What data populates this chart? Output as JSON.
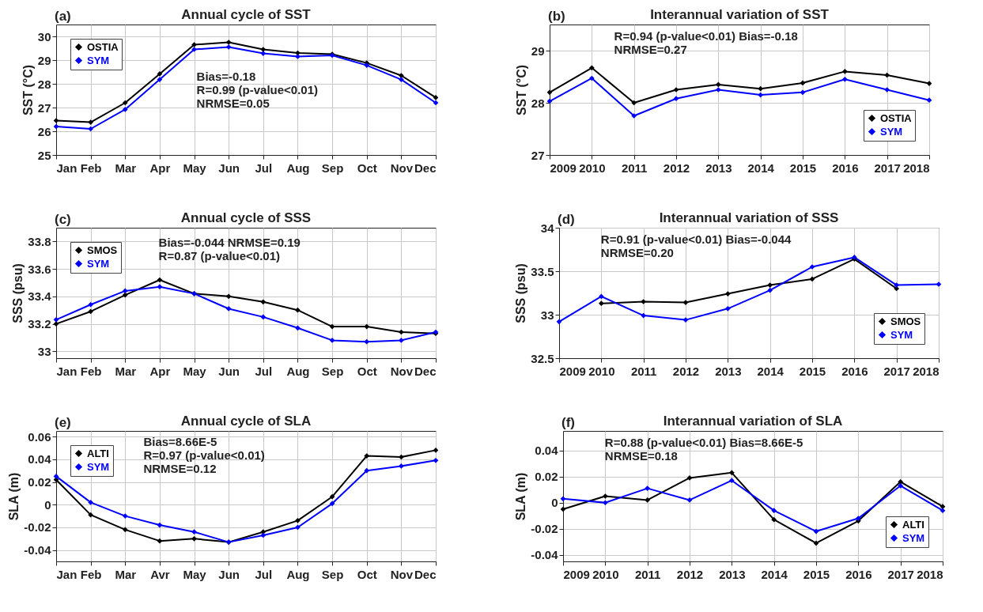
{
  "chart_data": [
    {
      "type": "line",
      "title": "Annual cycle of SST",
      "ylabel": "SST (°C)",
      "categories": [
        "Jan",
        "Feb",
        "Mar",
        "Apr",
        "May",
        "Jun",
        "Jul",
        "Aug",
        "Sep",
        "Oct",
        "Nov",
        "Dec"
      ],
      "ylim": [
        25,
        30.5
      ],
      "yticks": [
        25,
        26,
        27,
        28,
        29,
        30
      ],
      "grid": true,
      "legend": "top left",
      "marker": "diamond",
      "annotations": [
        "(a)",
        "Bias=-0.18",
        "R=0.99 (p-value<0.01)",
        "NRMSE=0.05"
      ],
      "series": [
        {
          "name": "OSTIA",
          "color": "#000000",
          "values": [
            26.45,
            26.38,
            27.2,
            28.42,
            29.65,
            29.75,
            29.45,
            29.3,
            29.25,
            28.88,
            28.35,
            27.42
          ]
        },
        {
          "name": "SYM",
          "color": "#0000ff",
          "values": [
            26.2,
            26.1,
            26.92,
            28.18,
            29.45,
            29.55,
            29.28,
            29.15,
            29.2,
            28.78,
            28.18,
            27.2
          ]
        }
      ]
    },
    {
      "type": "line",
      "title": "Interannual variation of SST",
      "ylabel": "SST (°C)",
      "categories": [
        "2009",
        "2010",
        "2011",
        "2012",
        "2013",
        "2014",
        "2015",
        "2016",
        "2017",
        "2018"
      ],
      "ylim": [
        27,
        29.5
      ],
      "yticks": [
        27,
        28,
        29
      ],
      "grid": true,
      "legend": "bottom right",
      "marker": "diamond",
      "annotations": [
        "(b)",
        "R=0.94 (p-value<0.01)      Bias=-0.18",
        "NRMSE=0.27"
      ],
      "series": [
        {
          "name": "OSTIA",
          "color": "#000000",
          "values": [
            28.2,
            28.67,
            28.0,
            28.25,
            28.35,
            28.27,
            28.38,
            28.6,
            28.53,
            28.37
          ]
        },
        {
          "name": "SYM",
          "color": "#0000ff",
          "values": [
            28.03,
            28.47,
            27.75,
            28.08,
            28.25,
            28.15,
            28.2,
            28.45,
            28.25,
            28.05
          ]
        }
      ]
    },
    {
      "type": "line",
      "title": "Annual cycle of SSS",
      "ylabel": "SSS (psu)",
      "categories": [
        "Jan",
        "Feb",
        "Mar",
        "Apr",
        "May",
        "Jun",
        "Jul",
        "Aug",
        "Sep",
        "Oct",
        "Nov",
        "Dec"
      ],
      "ylim": [
        32.95,
        33.9
      ],
      "yticks": [
        33,
        33.2,
        33.4,
        33.6,
        33.8
      ],
      "grid": true,
      "legend": "top left",
      "marker": "diamond",
      "annotations": [
        "(c)",
        "Bias=-0.044      NRMSE=0.19",
        "R=0.87 (p-value<0.01)"
      ],
      "series": [
        {
          "name": "SMOS",
          "color": "#000000",
          "values": [
            33.2,
            33.29,
            33.41,
            33.52,
            33.42,
            33.4,
            33.36,
            33.3,
            33.18,
            33.18,
            33.14,
            33.13
          ]
        },
        {
          "name": "SYM",
          "color": "#0000ff",
          "values": [
            33.23,
            33.34,
            33.44,
            33.47,
            33.42,
            33.31,
            33.25,
            33.17,
            33.08,
            33.07,
            33.08,
            33.14
          ]
        }
      ]
    },
    {
      "type": "line",
      "title": "Interannual variation of SSS",
      "ylabel": "SSS (psu)",
      "categories": [
        "2009",
        "2010",
        "2011",
        "2012",
        "2013",
        "2014",
        "2015",
        "2016",
        "2017",
        "2018"
      ],
      "ylim": [
        32.5,
        34
      ],
      "yticks": [
        32.5,
        33,
        33.5,
        34
      ],
      "grid": true,
      "legend": "bottom right",
      "marker": "diamond",
      "annotations": [
        "(d)",
        "R=0.91 (p-value<0.01)      Bias=-0.044",
        "NRMSE=0.20"
      ],
      "series": [
        {
          "name": "SMOS",
          "color": "#000000",
          "values": [
            null,
            33.13,
            33.15,
            33.14,
            33.24,
            33.34,
            33.41,
            33.64,
            33.3,
            null
          ]
        },
        {
          "name": "SYM",
          "color": "#0000ff",
          "values": [
            32.92,
            33.21,
            32.99,
            32.94,
            33.07,
            33.28,
            33.55,
            33.66,
            33.34,
            33.35
          ]
        }
      ]
    },
    {
      "type": "line",
      "title": "Annual cycle of SLA",
      "ylabel": "SLA (m)",
      "categories": [
        "Jan",
        "Feb",
        "Mar",
        "Avr",
        "May",
        "Jun",
        "Jul",
        "Aug",
        "Sep",
        "Oct",
        "Nov",
        "Dec"
      ],
      "ylim": [
        -0.05,
        0.065
      ],
      "yticks": [
        -0.04,
        -0.02,
        0,
        0.02,
        0.04,
        0.06
      ],
      "grid": true,
      "legend": "top left",
      "marker": "diamond",
      "annotations": [
        "(e)",
        "Bias=8.66E-5",
        "R=0.97 (p-value<0.01)",
        "NRMSE=0.12"
      ],
      "series": [
        {
          "name": "ALTI",
          "color": "#000000",
          "values": [
            0.022,
            -0.009,
            -0.022,
            -0.032,
            -0.03,
            -0.033,
            -0.024,
            -0.014,
            0.007,
            0.043,
            0.042,
            0.048
          ]
        },
        {
          "name": "SYM",
          "color": "#0000ff",
          "values": [
            0.025,
            0.002,
            -0.01,
            -0.018,
            -0.024,
            -0.033,
            -0.027,
            -0.02,
            0.001,
            0.03,
            0.034,
            0.039
          ]
        }
      ]
    },
    {
      "type": "line",
      "title": "Interannual variation of SLA",
      "ylabel": "SLA (m)",
      "categories": [
        "2009",
        "2010",
        "2011",
        "2012",
        "2013",
        "2014",
        "2015",
        "2016",
        "2017",
        "2018"
      ],
      "ylim": [
        -0.045,
        0.055
      ],
      "yticks": [
        -0.04,
        -0.02,
        0,
        0.02,
        0.04
      ],
      "grid": true,
      "legend": "bottom right",
      "marker": "diamond",
      "annotations": [
        "(f)",
        "R=0.88 (p-value<0.01)      Bias=8.66E-5",
        "NRMSE=0.18"
      ],
      "series": [
        {
          "name": "ALTI",
          "color": "#000000",
          "values": [
            -0.005,
            0.005,
            0.002,
            0.019,
            0.023,
            -0.013,
            -0.031,
            -0.014,
            0.016,
            -0.003
          ]
        },
        {
          "name": "SYM",
          "color": "#0000ff",
          "values": [
            0.003,
            0,
            0.011,
            0.002,
            0.017,
            -0.006,
            -0.022,
            -0.012,
            0.013,
            -0.006
          ]
        }
      ]
    }
  ]
}
